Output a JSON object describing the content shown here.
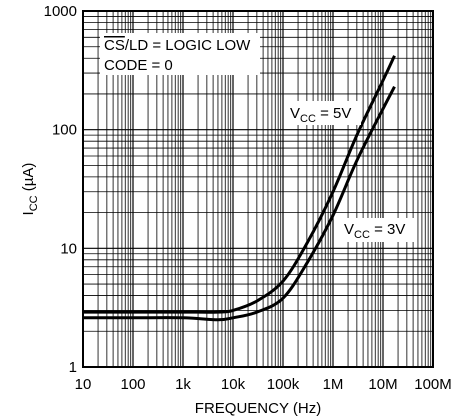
{
  "chart_data": {
    "type": "line",
    "xscale": "log",
    "yscale": "log",
    "xlim": [
      10,
      100000000
    ],
    "ylim": [
      1,
      1000
    ],
    "grid": true,
    "xlabel": "FREQUENCY (Hz)",
    "ylabel": {
      "main": "I",
      "sub": "CC",
      "unit": " (µA)"
    },
    "xticks": [
      {
        "value": 10,
        "label": "10"
      },
      {
        "value": 100,
        "label": "100"
      },
      {
        "value": 1000,
        "label": "1k"
      },
      {
        "value": 10000,
        "label": "10k"
      },
      {
        "value": 100000,
        "label": "100k"
      },
      {
        "value": 1000000,
        "label": "1M"
      },
      {
        "value": 10000000,
        "label": "10M"
      },
      {
        "value": 100000000,
        "label": "100M"
      }
    ],
    "yticks": [
      {
        "value": 1,
        "label": "1"
      },
      {
        "value": 10,
        "label": "10"
      },
      {
        "value": 100,
        "label": "100"
      },
      {
        "value": 1000,
        "label": "1000"
      }
    ],
    "conditions": {
      "line1_overline": "CS",
      "line1_rest": "/LD = LOGIC LOW",
      "line2": "CODE = 0"
    },
    "series": [
      {
        "label": {
          "main": "V",
          "sub": "CC",
          "rest": " = 5V"
        },
        "x": [
          10,
          100,
          1000,
          5000,
          10000,
          30000,
          100000,
          300000,
          1000000,
          3000000,
          10000000,
          17000000
        ],
        "y": [
          2.9,
          2.9,
          2.9,
          2.9,
          3.0,
          3.6,
          5.3,
          11,
          30,
          90,
          260,
          420
        ]
      },
      {
        "label": {
          "main": "V",
          "sub": "CC",
          "rest": " = 3V"
        },
        "x": [
          10,
          100,
          1000,
          5000,
          10000,
          30000,
          100000,
          300000,
          1000000,
          3000000,
          10000000,
          17000000
        ],
        "y": [
          2.6,
          2.6,
          2.6,
          2.5,
          2.6,
          2.9,
          3.8,
          7.5,
          19,
          55,
          150,
          230
        ]
      }
    ]
  }
}
